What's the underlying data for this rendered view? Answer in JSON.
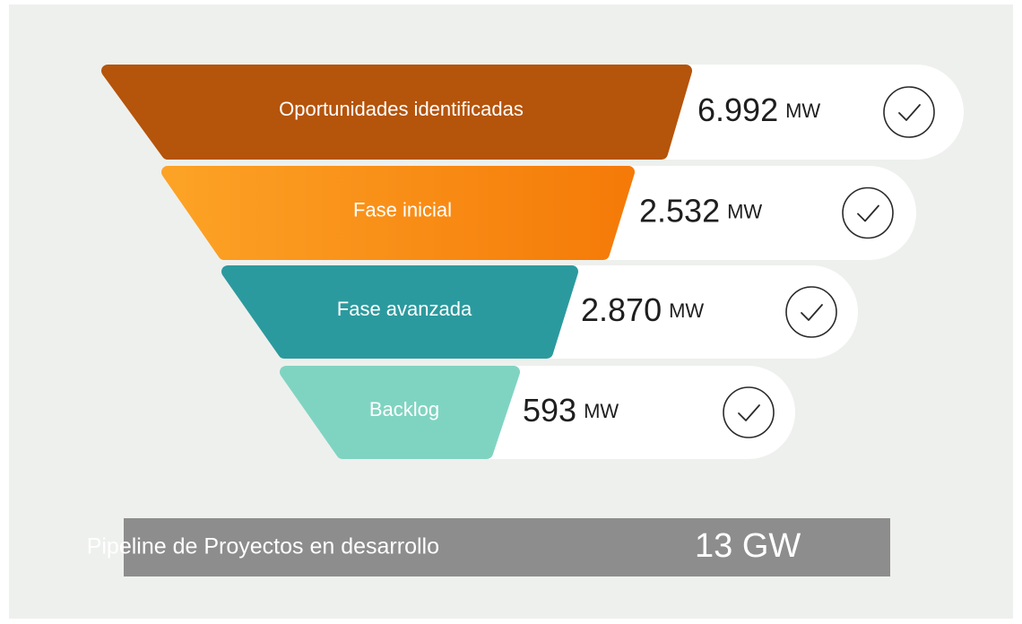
{
  "stages": [
    {
      "label": "Oportunidades identificadas",
      "value": "6.992",
      "unit": "MW"
    },
    {
      "label": "Fase inicial",
      "value": "2.532",
      "unit": "MW"
    },
    {
      "label": "Fase avanzada",
      "value": "2.870",
      "unit": "MW"
    },
    {
      "label": "Backlog",
      "value": "593",
      "unit": "MW"
    }
  ],
  "footer": {
    "label": "Pipeline de Proyectos en desarrollo",
    "value": "13 GW"
  }
}
